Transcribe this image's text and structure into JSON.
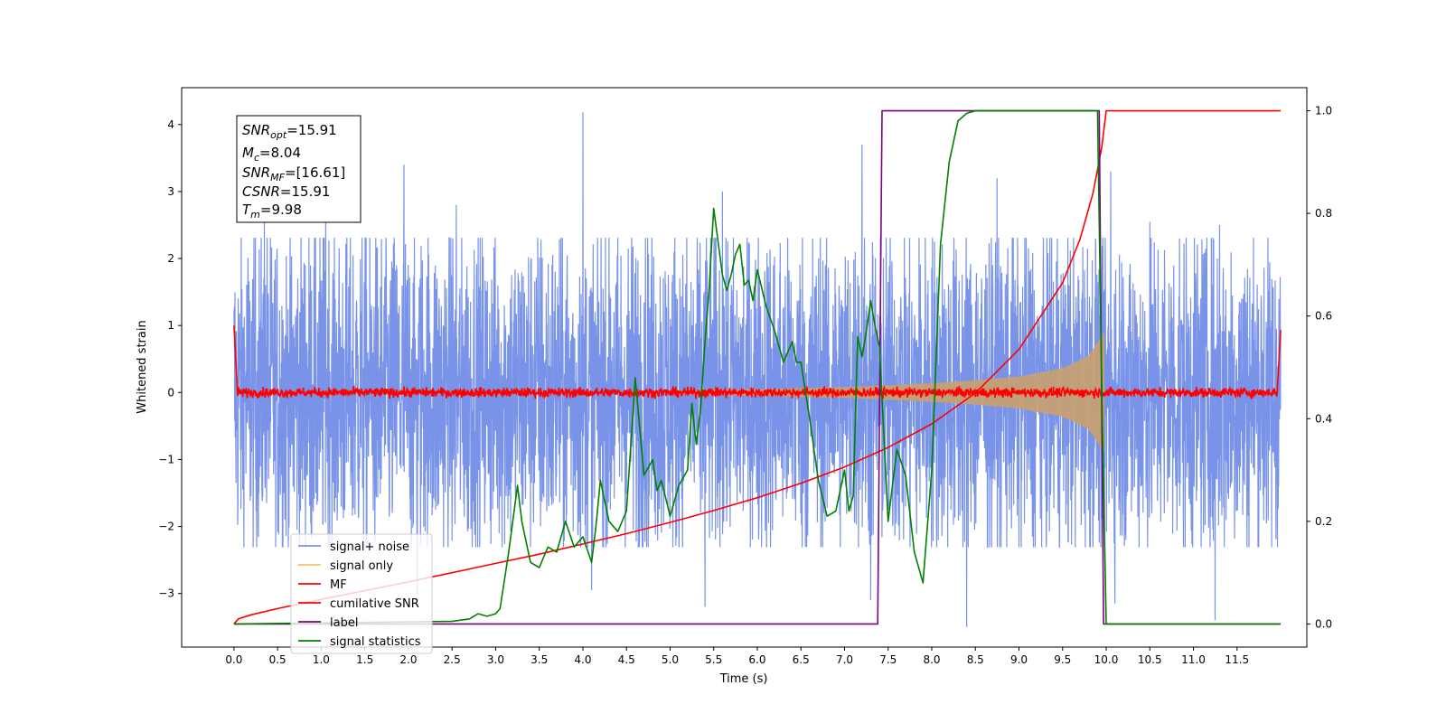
{
  "chart_data": {
    "type": "line",
    "title": "",
    "xlabel": "Time (s)",
    "ylabel": "Whitened strain",
    "xlim": [
      -0.6,
      12.3
    ],
    "ylim": [
      -3.8,
      4.55
    ],
    "y2lim": [
      -0.045,
      1.045
    ],
    "x_ticks": [
      "0.0",
      "0.5",
      "1.0",
      "1.5",
      "2.0",
      "2.5",
      "3.0",
      "3.5",
      "4.0",
      "4.5",
      "5.0",
      "5.5",
      "6.0",
      "6.5",
      "7.0",
      "7.5",
      "8.0",
      "8.5",
      "9.0",
      "9.5",
      "10.0",
      "10.5",
      "11.0",
      "11.5"
    ],
    "y_ticks": [
      "−3",
      "−2",
      "−1",
      "0",
      "1",
      "2",
      "3",
      "4"
    ],
    "y2_ticks": [
      "0.0",
      "0.2",
      "0.4",
      "0.6",
      "0.8",
      "1.0"
    ],
    "grid": false,
    "legend_position": "lower-left",
    "legend": [
      {
        "label": "signal+ noise",
        "color": "#7893e8"
      },
      {
        "label": "signal only",
        "color": "#f5c26b"
      },
      {
        "label": "MF",
        "color": "#ff0000"
      },
      {
        "label": "cumilative SNR",
        "color": "#ff0000"
      },
      {
        "label": "label",
        "color": "#800080"
      },
      {
        "label": "signal statistics",
        "color": "#008000"
      }
    ],
    "annotation": {
      "snr_opt": "=15.91",
      "mc": "=8.04",
      "snr_mf": "=[16.61]",
      "csnr": "=15.91",
      "tm": "=9.98"
    },
    "series": [
      {
        "name": "signal+ noise",
        "axis": "left",
        "color": "#7893e8",
        "x_range": [
          0.0,
          12.0
        ],
        "typical_abs_max": 2.2,
        "peaks": [
          [
            0.35,
            2.6
          ],
          [
            1.05,
            2.9
          ],
          [
            1.95,
            3.4
          ],
          [
            2.55,
            2.8
          ],
          [
            4.0,
            4.18
          ],
          [
            5.6,
            3.0
          ],
          [
            7.2,
            3.7
          ],
          [
            8.75,
            3.2
          ],
          [
            10.05,
            3.3
          ],
          [
            10.5,
            2.55
          ],
          [
            11.3,
            2.5
          ],
          [
            2.1,
            -3.0
          ],
          [
            4.1,
            -2.95
          ],
          [
            5.4,
            -3.2
          ],
          [
            7.3,
            -3.1
          ],
          [
            8.4,
            -3.5
          ],
          [
            10.1,
            -3.15
          ],
          [
            11.25,
            -3.4
          ]
        ]
      },
      {
        "name": "signal only",
        "axis": "left",
        "color": "#c8a070",
        "envelope_x": [
          5.0,
          6.0,
          7.0,
          7.5,
          8.0,
          8.5,
          9.0,
          9.5,
          9.8,
          9.98
        ],
        "envelope_amp": [
          0.03,
          0.05,
          0.08,
          0.11,
          0.14,
          0.18,
          0.24,
          0.36,
          0.55,
          0.9
        ]
      },
      {
        "name": "MF",
        "axis": "left",
        "color": "#ff0000",
        "x_range": [
          0.0,
          12.0
        ],
        "start_value": 1.0,
        "end_value": 0.93,
        "noise_amp": 0.07
      },
      {
        "name": "cumilative SNR",
        "axis": "right",
        "color": "#ff0000",
        "x": [
          0.0,
          0.05,
          0.2,
          0.5,
          1.0,
          1.5,
          2.0,
          2.5,
          3.0,
          3.5,
          4.0,
          4.5,
          5.0,
          5.5,
          6.0,
          6.5,
          7.0,
          7.5,
          8.0,
          8.5,
          9.0,
          9.5,
          9.7,
          9.85,
          9.95,
          10.0,
          12.0
        ],
        "y": [
          0.0,
          0.01,
          0.018,
          0.03,
          0.048,
          0.065,
          0.082,
          0.1,
          0.118,
          0.136,
          0.156,
          0.176,
          0.198,
          0.221,
          0.246,
          0.274,
          0.306,
          0.344,
          0.39,
          0.45,
          0.535,
          0.665,
          0.75,
          0.84,
          0.93,
          1.0,
          1.0
        ]
      },
      {
        "name": "label",
        "axis": "right",
        "color": "#800080",
        "x": [
          0.0,
          7.38,
          7.43,
          9.92,
          9.97,
          12.0
        ],
        "y": [
          0.0,
          0.0,
          1.0,
          1.0,
          0.0,
          0.0
        ]
      },
      {
        "name": "signal statistics",
        "axis": "right",
        "color": "#008000",
        "x": [
          0.0,
          2.5,
          2.7,
          2.8,
          2.9,
          3.0,
          3.05,
          3.15,
          3.25,
          3.3,
          3.4,
          3.5,
          3.6,
          3.7,
          3.8,
          3.9,
          4.0,
          4.1,
          4.15,
          4.2,
          4.3,
          4.4,
          4.5,
          4.6,
          4.7,
          4.8,
          4.85,
          4.9,
          5.0,
          5.1,
          5.2,
          5.25,
          5.3,
          5.35,
          5.4,
          5.45,
          5.5,
          5.6,
          5.65,
          5.7,
          5.75,
          5.8,
          5.85,
          5.9,
          5.95,
          6.0,
          6.1,
          6.2,
          6.3,
          6.4,
          6.45,
          6.5,
          6.6,
          6.7,
          6.8,
          6.9,
          7.0,
          7.05,
          7.1,
          7.15,
          7.2,
          7.25,
          7.3,
          7.35,
          7.4,
          7.5,
          7.6,
          7.7,
          7.8,
          7.9,
          8.0,
          8.1,
          8.2,
          8.3,
          8.4,
          8.5,
          8.6,
          9.0,
          9.5,
          9.9,
          9.95,
          10.0,
          10.5,
          11.0,
          12.0
        ],
        "y": [
          0.0,
          0.005,
          0.01,
          0.02,
          0.015,
          0.02,
          0.03,
          0.14,
          0.27,
          0.2,
          0.12,
          0.11,
          0.15,
          0.14,
          0.2,
          0.15,
          0.17,
          0.12,
          0.19,
          0.28,
          0.2,
          0.18,
          0.22,
          0.48,
          0.29,
          0.32,
          0.26,
          0.28,
          0.21,
          0.27,
          0.3,
          0.43,
          0.35,
          0.42,
          0.55,
          0.66,
          0.81,
          0.68,
          0.65,
          0.68,
          0.72,
          0.74,
          0.66,
          0.67,
          0.63,
          0.69,
          0.62,
          0.57,
          0.51,
          0.55,
          0.51,
          0.51,
          0.4,
          0.28,
          0.21,
          0.22,
          0.3,
          0.22,
          0.25,
          0.56,
          0.52,
          0.57,
          0.63,
          0.58,
          0.54,
          0.2,
          0.34,
          0.29,
          0.14,
          0.08,
          0.3,
          0.74,
          0.9,
          0.98,
          0.995,
          1.0,
          1.0,
          1.0,
          1.0,
          1.0,
          0.45,
          0.0,
          0.0,
          0.0,
          0.0
        ]
      }
    ]
  }
}
